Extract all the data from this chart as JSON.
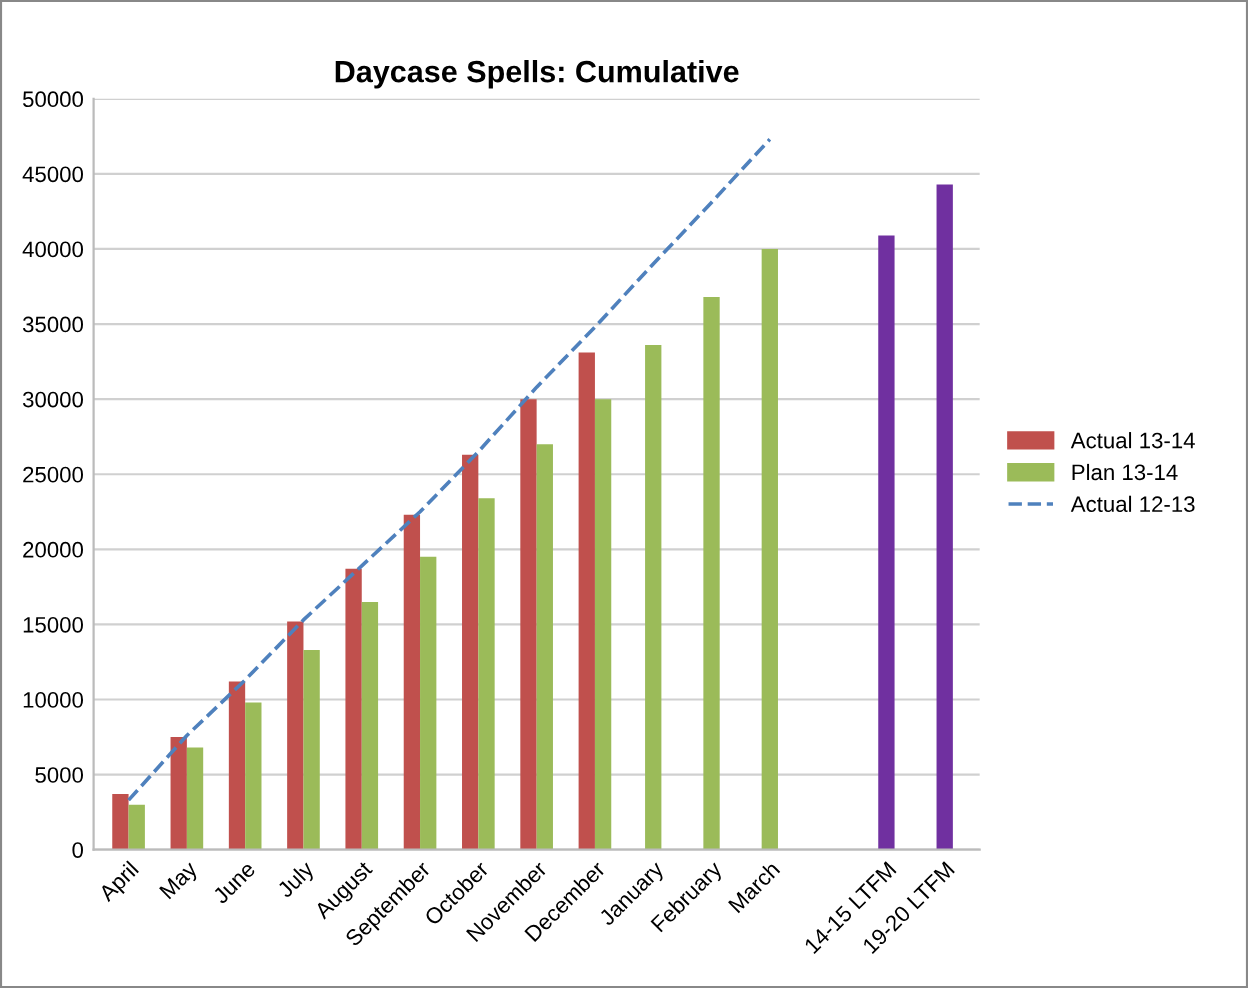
{
  "chart_data": {
    "type": "bar",
    "title": "Daycase Spells: Cumulative",
    "categories": [
      "April",
      "May",
      "June",
      "July",
      "August",
      "September",
      "October",
      "November",
      "December",
      "January",
      "February",
      "March",
      null,
      "14-15 LTFM",
      "19-20 LTFM"
    ],
    "series": [
      {
        "name": "Actual 13-14",
        "color": "#c0504d",
        "values": [
          3700,
          7500,
          11200,
          15200,
          18700,
          22300,
          26300,
          30000,
          33100,
          null,
          null,
          null,
          null,
          null,
          null
        ]
      },
      {
        "name": "Plan 13-14",
        "color": "#9bbb59",
        "values": [
          3000,
          6800,
          9800,
          13300,
          16500,
          19500,
          23400,
          27000,
          30000,
          33600,
          36800,
          40000,
          null,
          null,
          null
        ]
      },
      {
        "color": "#7030a0",
        "values": [
          null,
          null,
          null,
          null,
          null,
          null,
          null,
          null,
          null,
          null,
          null,
          null,
          null,
          40900,
          44300
        ]
      },
      {
        "name": "Actual 12-13",
        "type": "line",
        "color": "#4f81bd",
        "line_style": "dashed",
        "values": [
          3300,
          7600,
          11300,
          15300,
          18900,
          22500,
          26500,
          30800,
          34800,
          39000,
          43100,
          47300,
          null,
          null,
          null
        ]
      }
    ],
    "ylim": [
      0,
      50000
    ],
    "yticks": [
      0,
      5000,
      10000,
      15000,
      20000,
      25000,
      30000,
      35000,
      40000,
      45000,
      50000
    ],
    "grid": "y",
    "legend": "right"
  }
}
